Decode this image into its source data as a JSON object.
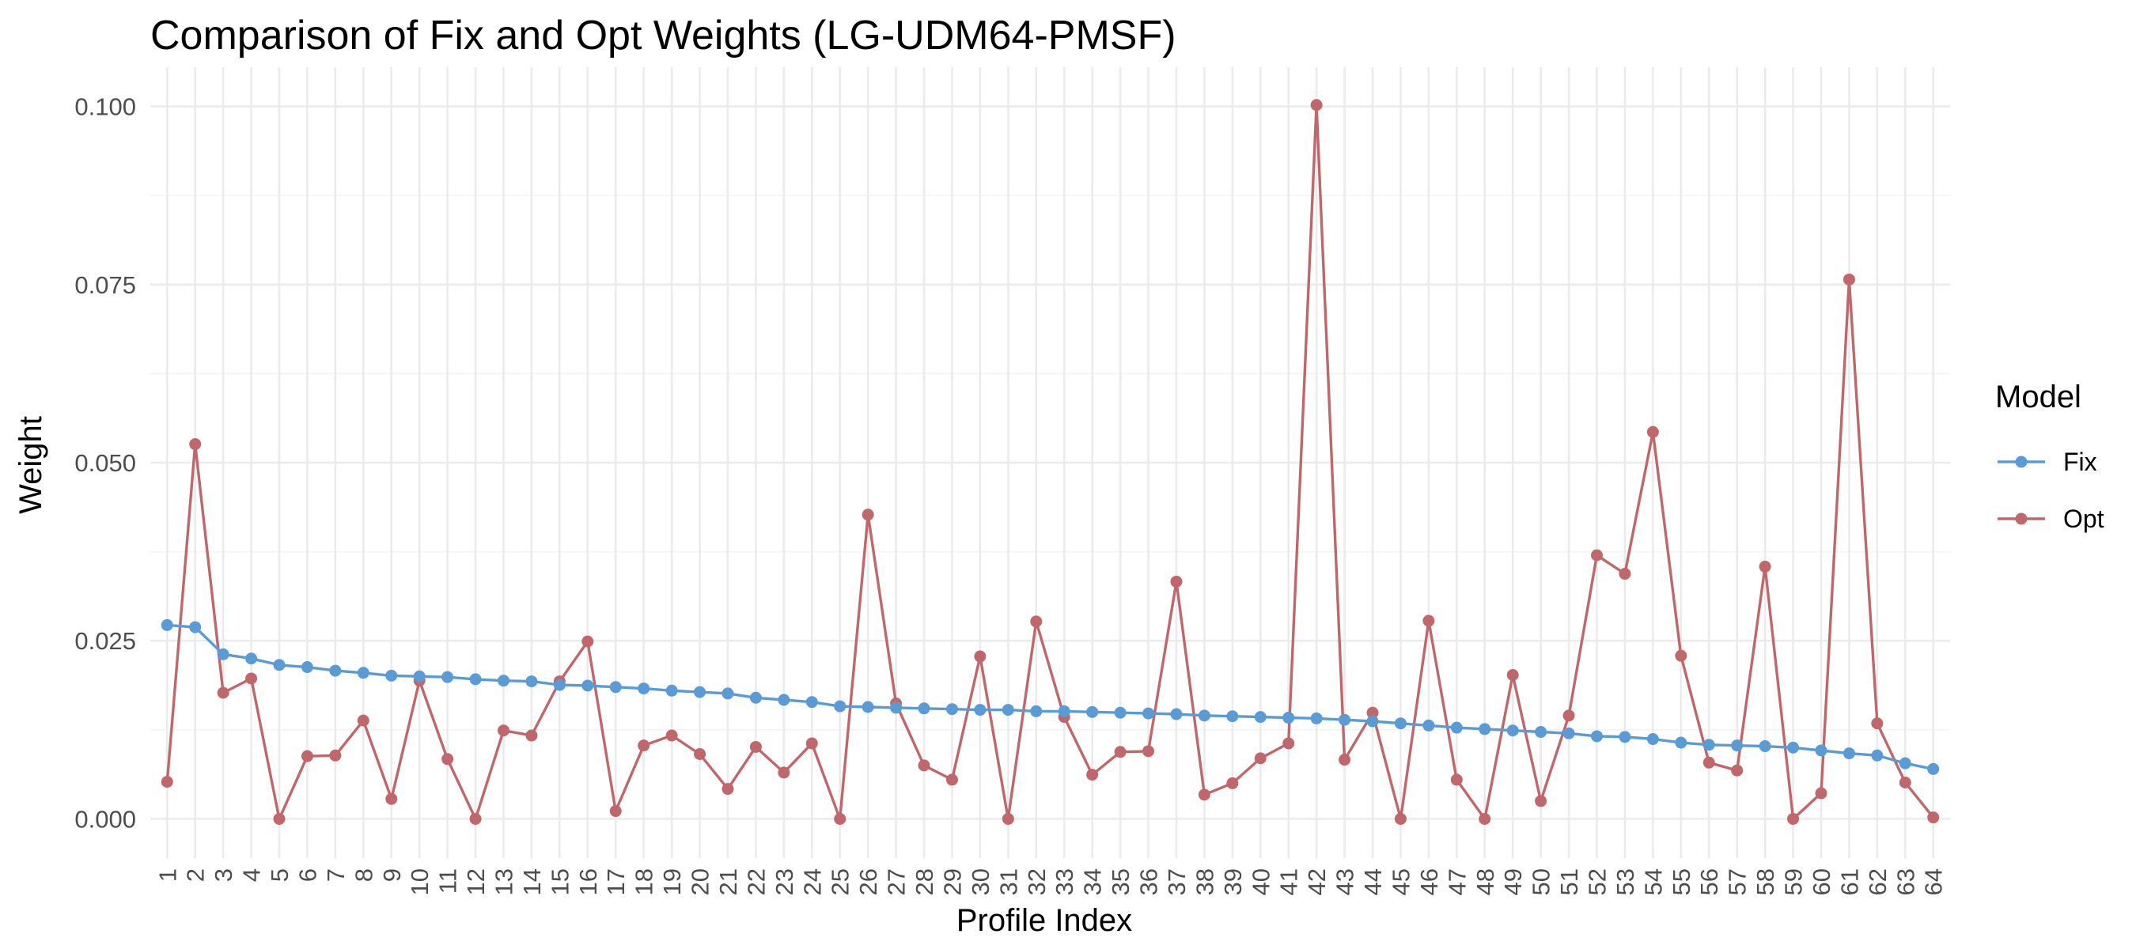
{
  "chart_data": {
    "type": "line",
    "title": "Comparison of Fix and Opt Weights (LG-UDM64-PMSF)",
    "xlabel": "Profile Index",
    "ylabel": "Weight",
    "x": [
      1,
      2,
      3,
      4,
      5,
      6,
      7,
      8,
      9,
      10,
      11,
      12,
      13,
      14,
      15,
      16,
      17,
      18,
      19,
      20,
      21,
      22,
      23,
      24,
      25,
      26,
      27,
      28,
      29,
      30,
      31,
      32,
      33,
      34,
      35,
      36,
      37,
      38,
      39,
      40,
      41,
      42,
      43,
      44,
      45,
      46,
      47,
      48,
      49,
      50,
      51,
      52,
      53,
      54,
      55,
      56,
      57,
      58,
      59,
      60,
      61,
      62,
      63,
      64
    ],
    "x_tick_labels": [
      "1",
      "2",
      "3",
      "4",
      "5",
      "6",
      "7",
      "8",
      "9",
      "10",
      "11",
      "12",
      "13",
      "14",
      "15",
      "16",
      "17",
      "18",
      "19",
      "20",
      "21",
      "22",
      "23",
      "24",
      "25",
      "26",
      "27",
      "28",
      "29",
      "30",
      "31",
      "32",
      "33",
      "34",
      "35",
      "36",
      "37",
      "38",
      "39",
      "40",
      "41",
      "42",
      "43",
      "44",
      "45",
      "46",
      "47",
      "48",
      "49",
      "50",
      "51",
      "52",
      "53",
      "54",
      "55",
      "56",
      "57",
      "58",
      "59",
      "60",
      "61",
      "62",
      "63",
      "64"
    ],
    "y_ticks": [
      0,
      0.025,
      0.05,
      0.075,
      0.1
    ],
    "y_tick_labels": [
      "0.000",
      "0.025",
      "0.050",
      "0.075",
      "0.100"
    ],
    "ylim": [
      -0.0055,
      0.1055
    ],
    "xlim": [
      0.4,
      64.6
    ],
    "grid": true,
    "legend": {
      "title": "Model",
      "position": "right"
    },
    "series": [
      {
        "name": "Fix",
        "color": "#5b9bd5",
        "values": [
          0.0272,
          0.0269,
          0.0231,
          0.0225,
          0.0216,
          0.0213,
          0.0208,
          0.0205,
          0.0201,
          0.02,
          0.0199,
          0.0196,
          0.0194,
          0.0193,
          0.0188,
          0.0187,
          0.0185,
          0.0183,
          0.018,
          0.0178,
          0.0176,
          0.017,
          0.0167,
          0.0164,
          0.0158,
          0.0157,
          0.0156,
          0.0155,
          0.0154,
          0.0153,
          0.0153,
          0.0151,
          0.0151,
          0.015,
          0.0149,
          0.0148,
          0.0147,
          0.0145,
          0.0144,
          0.0143,
          0.0142,
          0.0141,
          0.0139,
          0.0137,
          0.0134,
          0.0131,
          0.0128,
          0.0126,
          0.0124,
          0.0122,
          0.012,
          0.0116,
          0.0115,
          0.0112,
          0.0107,
          0.0104,
          0.0103,
          0.0102,
          0.01,
          0.0096,
          0.0092,
          0.0089,
          0.0078,
          0.007
        ]
      },
      {
        "name": "Opt",
        "color": "#c0676b",
        "values": [
          0.0052,
          0.0526,
          0.0177,
          0.0197,
          0.0,
          0.0088,
          0.0089,
          0.0138,
          0.0028,
          0.0194,
          0.0084,
          0.0,
          0.0124,
          0.0117,
          0.0193,
          0.0249,
          0.0011,
          0.0103,
          0.0117,
          0.0091,
          0.0042,
          0.0101,
          0.0065,
          0.0106,
          0.0,
          0.0427,
          0.0162,
          0.0075,
          0.0055,
          0.0228,
          0.0,
          0.0277,
          0.0143,
          0.0062,
          0.0094,
          0.0095,
          0.0333,
          0.0034,
          0.005,
          0.0085,
          0.0106,
          0.1002,
          0.0083,
          0.0149,
          0.0,
          0.0278,
          0.0055,
          0.0,
          0.0202,
          0.0025,
          0.0145,
          0.037,
          0.0344,
          0.0543,
          0.0229,
          0.0079,
          0.0068,
          0.0354,
          0.0,
          0.0036,
          0.0757,
          0.0134,
          0.0051,
          0.0002
        ]
      }
    ]
  }
}
